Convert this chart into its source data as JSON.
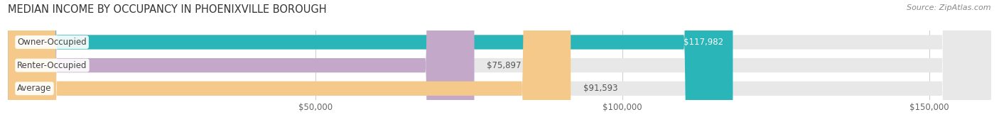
{
  "title": "MEDIAN INCOME BY OCCUPANCY IN PHOENIXVILLE BOROUGH",
  "source": "Source: ZipAtlas.com",
  "categories": [
    "Owner-Occupied",
    "Renter-Occupied",
    "Average"
  ],
  "values": [
    117982,
    75897,
    91593
  ],
  "value_labels": [
    "$117,982",
    "$75,897",
    "$91,593"
  ],
  "bar_colors": [
    "#2ab5b8",
    "#c3a8ca",
    "#f5c98a"
  ],
  "bar_height": 0.62,
  "xlim": [
    0,
    160000
  ],
  "xticks": [
    50000,
    100000,
    150000
  ],
  "xtick_labels": [
    "$50,000",
    "$100,000",
    "$150,000"
  ],
  "title_fontsize": 10.5,
  "source_fontsize": 8,
  "label_fontsize": 8.5,
  "value_fontsize": 8.5,
  "bar_bg_color": "#e8e8e8",
  "value_label_inside_threshold": 110000
}
